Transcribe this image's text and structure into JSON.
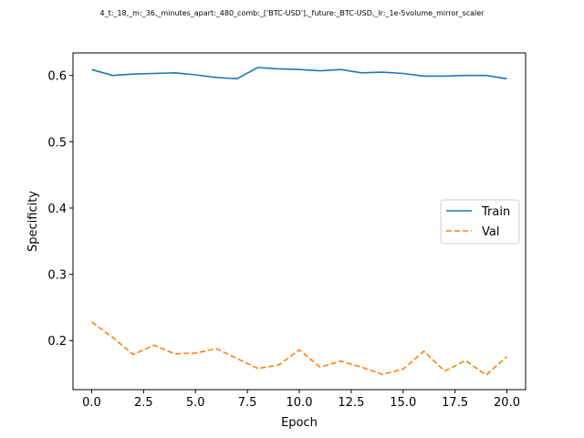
{
  "chart_data": {
    "type": "line",
    "title": "4_t:_18,_m:_36,_minutes_apart:_480_comb:_['BTC-USD'],_future:_BTC-USD,_lr:_1e-5volume_mirror_scaler",
    "xlabel": "Epoch",
    "ylabel": "Specificity",
    "xlim": [
      -0.9,
      20.9
    ],
    "ylim": [
      0.126,
      0.634
    ],
    "x_ticks": [
      0.0,
      2.5,
      5.0,
      7.5,
      10.0,
      12.5,
      15.0,
      17.5,
      20.0
    ],
    "x_tick_labels": [
      "0.0",
      "2.5",
      "5.0",
      "7.5",
      "10.0",
      "12.5",
      "15.0",
      "17.5",
      "20.0"
    ],
    "y_ticks": [
      0.2,
      0.3,
      0.4,
      0.5,
      0.6
    ],
    "y_tick_labels": [
      "0.2",
      "0.3",
      "0.4",
      "0.5",
      "0.6"
    ],
    "grid": false,
    "legend_position": "center-right",
    "x": [
      0,
      1,
      2,
      3,
      4,
      5,
      6,
      7,
      8,
      9,
      10,
      11,
      12,
      13,
      14,
      15,
      16,
      17,
      18,
      19,
      20
    ],
    "series": [
      {
        "name": "Train",
        "color": "#1f77b4",
        "style": "solid",
        "values": [
          0.609,
          0.6,
          0.602,
          0.603,
          0.604,
          0.601,
          0.597,
          0.595,
          0.612,
          0.61,
          0.609,
          0.607,
          0.609,
          0.604,
          0.605,
          0.603,
          0.599,
          0.599,
          0.6,
          0.6,
          0.595
        ]
      },
      {
        "name": "Val",
        "color": "#ff7f0e",
        "style": "dashed",
        "values": [
          0.228,
          0.205,
          0.179,
          0.193,
          0.18,
          0.181,
          0.188,
          0.173,
          0.158,
          0.163,
          0.186,
          0.16,
          0.169,
          0.16,
          0.149,
          0.157,
          0.184,
          0.154,
          0.17,
          0.148,
          0.176
        ]
      }
    ]
  }
}
